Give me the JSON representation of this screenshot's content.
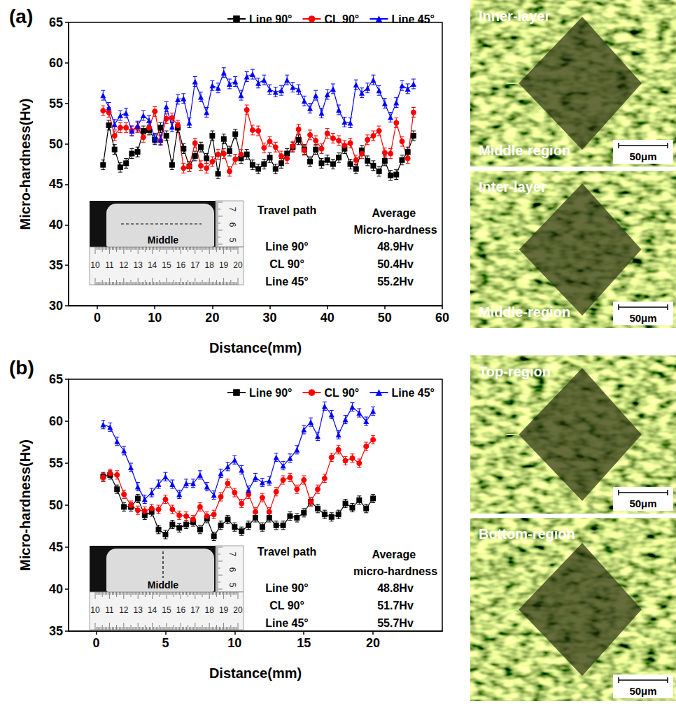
{
  "chart_data": [
    {
      "type": "line",
      "title": "(a)",
      "x_label": "Distance(mm)",
      "y_label": "Micro-hardness(Hv)",
      "xlim": [
        -5,
        60
      ],
      "xticks": [
        0,
        10,
        20,
        30,
        40,
        50,
        60
      ],
      "ylim": [
        30,
        65
      ],
      "yticks": [
        30,
        35,
        40,
        45,
        50,
        55,
        60,
        65
      ],
      "grid": false,
      "legend": "top-right",
      "x": [
        1,
        2,
        3,
        4,
        5,
        6,
        7,
        8,
        9,
        10,
        11,
        12,
        13,
        14,
        15,
        16,
        17,
        18,
        19,
        20,
        21,
        22,
        23,
        24,
        25,
        26,
        27,
        28,
        29,
        30,
        31,
        32,
        33,
        34,
        35,
        36,
        37,
        38,
        39,
        40,
        41,
        42,
        43,
        44,
        45,
        46,
        47,
        48,
        49,
        50,
        51,
        52,
        53,
        54,
        55
      ],
      "series": [
        {
          "name": "Line 90°",
          "color": "#000000",
          "marker": "square",
          "error": 0.6,
          "values": [
            47.4,
            52.3,
            49.3,
            47.1,
            47.6,
            48.8,
            49.0,
            51.6,
            51.7,
            50.5,
            52.0,
            51.0,
            47.4,
            52.0,
            49.4,
            47.2,
            48.5,
            49.6,
            48.2,
            51.0,
            46.3,
            50.6,
            49.1,
            51.2,
            48.2,
            48.7,
            47.4,
            46.9,
            47.5,
            48.3,
            46.9,
            47.6,
            48.8,
            49.6,
            50.5,
            49.3,
            47.8,
            49.3,
            47.6,
            48.0,
            47.5,
            48.3,
            49.4,
            47.5,
            46.9,
            49.2,
            47.9,
            47.3,
            46.6,
            47.9,
            46.1,
            46.2,
            48.0,
            49.0,
            51.0
          ]
        },
        {
          "name": "CL 90°",
          "color": "#ff0000",
          "marker": "circle",
          "error": 0.6,
          "values": [
            54.1,
            53.9,
            51.0,
            52.0,
            52.0,
            51.6,
            52.0,
            50.8,
            52.0,
            54.0,
            50.4,
            53.1,
            53.2,
            52.3,
            47.0,
            47.2,
            50.1,
            47.3,
            47.0,
            47.8,
            48.7,
            48.8,
            46.6,
            48.1,
            48.7,
            54.2,
            51.7,
            51.6,
            49.5,
            50.3,
            49.6,
            48.5,
            48.2,
            49.7,
            51.8,
            49.2,
            51.1,
            50.4,
            49.4,
            51.3,
            50.7,
            50.4,
            49.8,
            50.1,
            48.0,
            48.8,
            50.5,
            51.0,
            51.6,
            48.9,
            48.8,
            52.6,
            50.3,
            48.2,
            53.9
          ]
        },
        {
          "name": "Line 45°",
          "color": "#0000ff",
          "marker": "triangle",
          "error": 0.6,
          "values": [
            56.0,
            54.5,
            52.4,
            53.5,
            53.8,
            51.6,
            52.2,
            53.5,
            52.9,
            50.7,
            50.5,
            54.6,
            52.1,
            55.5,
            55.6,
            52.6,
            57.7,
            55.8,
            53.9,
            57.2,
            56.9,
            58.8,
            57.4,
            57.7,
            56.0,
            58.3,
            58.6,
            57.5,
            57.9,
            56.7,
            56.4,
            56.6,
            57.9,
            57.0,
            56.7,
            55.3,
            54.4,
            56.0,
            53.8,
            56.1,
            56.8,
            54.2,
            52.7,
            52.6,
            57.3,
            56.3,
            56.9,
            57.9,
            56.6,
            55.0,
            53.3,
            55.1,
            57.2,
            56.8,
            57.4
          ]
        }
      ]
    },
    {
      "type": "line",
      "title": "(b)",
      "x_label": "Distance(mm)",
      "y_label": "Micro-hardness(Hv)",
      "xlim": [
        -2,
        25
      ],
      "xticks": [
        0,
        5,
        10,
        15,
        20
      ],
      "ylim": [
        35,
        65
      ],
      "yticks": [
        35,
        40,
        45,
        50,
        55,
        60,
        65
      ],
      "grid": false,
      "legend": "top-right",
      "x": [
        0.5,
        1,
        1.5,
        2,
        2.5,
        3,
        3.5,
        4,
        4.5,
        5,
        5.5,
        6,
        6.5,
        7,
        7.5,
        8,
        8.5,
        9,
        9.5,
        10,
        10.5,
        11,
        11.5,
        12,
        12.5,
        13,
        13.5,
        14,
        14.5,
        15,
        15.5,
        16,
        16.5,
        17,
        17.5,
        18,
        18.5,
        19,
        19.5,
        20
      ],
      "series": [
        {
          "name": "Line 90°",
          "color": "#000000",
          "marker": "square",
          "error": 0.5,
          "values": [
            53.4,
            53.6,
            51.9,
            49.8,
            49.8,
            50.8,
            48.8,
            49.2,
            47.1,
            46.5,
            47.7,
            47.3,
            47.7,
            48.0,
            47.1,
            48.4,
            46.3,
            47.6,
            48.3,
            47.4,
            46.9,
            47.6,
            48.5,
            47.4,
            48.5,
            47.6,
            47.6,
            48.7,
            48.5,
            49.1,
            50.4,
            49.6,
            48.9,
            48.6,
            48.9,
            50.2,
            49.7,
            50.6,
            49.6,
            50.8
          ]
        },
        {
          "name": "CL 90°",
          "color": "#ff0000",
          "marker": "circle",
          "error": 0.5,
          "values": [
            53.3,
            53.8,
            53.6,
            51.3,
            50.0,
            49.4,
            49.3,
            49.6,
            49.5,
            50.7,
            49.5,
            48.8,
            48.7,
            48.3,
            49.8,
            48.7,
            48.9,
            51.0,
            52.6,
            51.5,
            50.2,
            51.3,
            49.2,
            50.9,
            49.2,
            51.6,
            53.0,
            53.3,
            51.9,
            53.0,
            50.4,
            51.9,
            53.2,
            55.7,
            56.6,
            55.3,
            55.6,
            55.0,
            57.0,
            57.8
          ]
        },
        {
          "name": "Line 45°",
          "color": "#0000ff",
          "marker": "triangle",
          "error": 0.5,
          "values": [
            59.6,
            59.3,
            57.6,
            56.5,
            54.5,
            52.2,
            50.7,
            51.5,
            52.5,
            53.4,
            52.5,
            51.3,
            52.6,
            52.6,
            53.6,
            52.2,
            51.2,
            53.8,
            54.6,
            55.4,
            54.2,
            51.8,
            53.3,
            52.7,
            52.9,
            55.7,
            54.7,
            55.6,
            56.6,
            59.0,
            59.9,
            58.2,
            61.8,
            60.8,
            58.4,
            60.2,
            61.7,
            61.0,
            60.0,
            61.2
          ]
        }
      ]
    }
  ],
  "insets": [
    {
      "label": "Middle",
      "orientation": "horizontal",
      "ruler_x": [
        10,
        11,
        12,
        13,
        14,
        15,
        16,
        17,
        18,
        19,
        20
      ],
      "ruler_y": [
        7,
        6,
        5
      ]
    },
    {
      "label": "Middle",
      "orientation": "vertical",
      "ruler_x": [
        10,
        11,
        12,
        13,
        14,
        15,
        16,
        17,
        18,
        19,
        20
      ],
      "ruler_y": [
        7,
        6,
        5
      ]
    }
  ],
  "tables": [
    {
      "header": [
        "Travel path",
        "Average Micro-hardness"
      ],
      "rows": [
        [
          "Line 90°",
          "48.9Hv"
        ],
        [
          "CL 90°",
          "50.4Hv"
        ],
        [
          "Line 45°",
          "55.2Hv"
        ]
      ]
    },
    {
      "header": [
        "Travel path",
        "Average micro-hardness"
      ],
      "rows": [
        [
          "Line 90°",
          "48.8Hv"
        ],
        [
          "CL 90°",
          "51.7Hv"
        ],
        [
          "Line 45°",
          "55.7Hv"
        ]
      ]
    }
  ],
  "micrographs": [
    {
      "labels": [
        "Inner-layer",
        "Middle-region"
      ],
      "scale": "50μm"
    },
    {
      "labels": [
        "Inter-layer",
        "Middle-region"
      ],
      "scale": "50μm"
    },
    {
      "labels": [
        "Top-region"
      ],
      "scale": "50μm"
    },
    {
      "labels": [
        "Bottom-region"
      ],
      "scale": "50μm"
    }
  ]
}
